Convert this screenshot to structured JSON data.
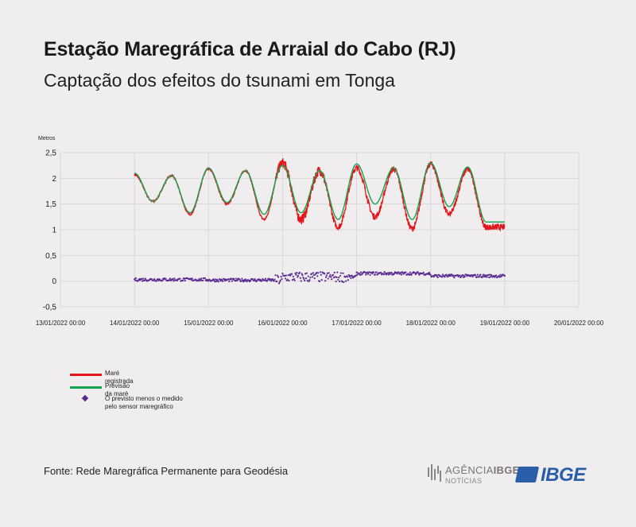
{
  "header": {
    "title": "Estação Maregráfica de Arraial do Cabo (RJ)",
    "subtitle": "Captação dos efeitos do tsunami em Tonga"
  },
  "footer": {
    "source": "Fonte: Rede Maregráfica Permanente para Geodésia",
    "agencia_top": "AGÊNCIA",
    "agencia_ibge": "IBGE",
    "agencia_bottom": "NOTÍCIAS",
    "logo_text": "IBGE"
  },
  "colors": {
    "registrada": "#e4161b",
    "previsao": "#14a44d",
    "residuo": "#5a2a91",
    "grid": "#d9d7d8"
  },
  "chart_data": {
    "type": "line",
    "ylabel": "Metros",
    "ylim": [
      -0.5,
      2.5
    ],
    "yticks": [
      -0.5,
      0,
      0.5,
      1,
      1.5,
      2,
      2.5
    ],
    "ytick_labels": [
      "-0,5",
      "0",
      "0,5",
      "1",
      "1,5",
      "2",
      "2,5"
    ],
    "xlim_days": [
      0,
      7
    ],
    "xtick_labels": [
      "13/01/2022 00:00",
      "14/01/2022 00:00",
      "15/01/2022 00:00",
      "16/01/2022 00:00",
      "17/01/2022 00:00",
      "18/01/2022 00:00",
      "19/01/2022 00:00",
      "20/01/2022 00:00"
    ],
    "grid": true,
    "legend_position": "bottom-left",
    "series": [
      {
        "name": "Maré registrada",
        "type": "line",
        "x_start": "14/01/2022 00:00",
        "x_end": "19/01/2022 00:00",
        "peaks": [
          2.07,
          2.05,
          2.18,
          2.15,
          2.3,
          2.15,
          2.2,
          2.18,
          2.28,
          2.18
        ],
        "troughs": [
          1.55,
          1.3,
          1.5,
          1.2,
          1.2,
          1.05,
          1.25,
          1.02,
          1.3,
          1.05
        ]
      },
      {
        "name": "Previsão da maré",
        "type": "line",
        "x_start": "14/01/2022 00:00",
        "x_end": "19/01/2022 00:00",
        "peaks": [
          2.1,
          2.05,
          2.2,
          2.15,
          2.25,
          2.15,
          2.28,
          2.2,
          2.3,
          2.22
        ],
        "troughs": [
          1.55,
          1.33,
          1.53,
          1.3,
          1.33,
          1.2,
          1.5,
          1.2,
          1.45,
          1.15
        ]
      },
      {
        "name": "O previsto menos o medido pelo sensor maregráfico",
        "type": "scatter",
        "x_start": "14/01/2022 00:00",
        "x_end": "19/01/2022 00:00",
        "baseline_by_day": [
          0.02,
          0.03,
          0.02,
          0.08,
          0.15,
          0.1,
          0.08
        ]
      }
    ]
  }
}
